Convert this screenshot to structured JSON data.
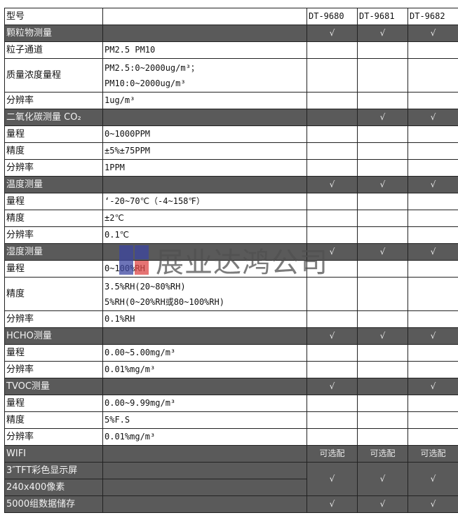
{
  "header": {
    "label": "型号",
    "models": [
      "DT-9680",
      "DT-9681",
      "DT-9682"
    ]
  },
  "check_mark": "√",
  "rows": [
    {
      "type": "section",
      "label": "颗粒物测量",
      "marks": [
        "√",
        "√",
        "√"
      ]
    },
    {
      "type": "item",
      "label": "粒子通道",
      "value": [
        "PM2.5 PM10"
      ]
    },
    {
      "type": "item",
      "label": "质量浓度量程",
      "value": [
        "PM2.5:0~2000ug/m³；",
        "PM10:0~2000ug/m³"
      ]
    },
    {
      "type": "item",
      "label": "分辨率",
      "value": [
        "1ug/m³"
      ]
    },
    {
      "type": "section",
      "label": "二氧化碳测量 CO₂",
      "marks": [
        "",
        "√",
        "√"
      ]
    },
    {
      "type": "item",
      "label": "量程",
      "value": [
        "0~1000PPM"
      ]
    },
    {
      "type": "item",
      "label": "精度",
      "value": [
        "±5%±75PPM"
      ]
    },
    {
      "type": "item",
      "label": "分辨率",
      "value": [
        "1PPM"
      ]
    },
    {
      "type": "section",
      "label": "温度测量",
      "marks": [
        "√",
        "√",
        "√"
      ]
    },
    {
      "type": "item",
      "label": "量程",
      "value": [
        "‘-20~70℃（-4~158℉）"
      ]
    },
    {
      "type": "item",
      "label": "精度",
      "value": [
        "±2℃"
      ]
    },
    {
      "type": "item",
      "label": "分辨率",
      "value": [
        "0.1℃"
      ]
    },
    {
      "type": "section",
      "label": "湿度测量",
      "marks": [
        "√",
        "√",
        "√"
      ]
    },
    {
      "type": "item",
      "label": "量程",
      "value": [
        "0~100%RH"
      ]
    },
    {
      "type": "item",
      "label": "精度",
      "value": [
        "3.5%RH(20~80%RH)",
        "5%RH(0~20%RH或80~100%RH)"
      ]
    },
    {
      "type": "item",
      "label": "分辨率",
      "value": [
        "0.1%RH"
      ]
    },
    {
      "type": "section",
      "label": "HCHO测量",
      "marks": [
        "√",
        "√",
        "√"
      ]
    },
    {
      "type": "item",
      "label": "量程",
      "value": [
        "0.00~5.00mg/m³"
      ]
    },
    {
      "type": "item",
      "label": "分辨率",
      "value": [
        "0.01%mg/m³"
      ]
    },
    {
      "type": "section",
      "label": "TVOC测量",
      "marks": [
        "√",
        "",
        "√"
      ]
    },
    {
      "type": "item",
      "label": "量程",
      "value": [
        "0.00~9.99mg/m³"
      ]
    },
    {
      "type": "item",
      "label": "精度",
      "value": [
        "5%F.S"
      ]
    },
    {
      "type": "item",
      "label": "分辨率",
      "value": [
        "0.01%mg/m³"
      ]
    },
    {
      "type": "section",
      "label": "WIFI",
      "marks": [
        "可选配",
        "可选配",
        "可选配"
      ]
    },
    {
      "type": "display",
      "label": [
        "3″TFT彩色显示屏",
        "240x400像素"
      ],
      "marks": [
        "√",
        "√",
        "√"
      ]
    },
    {
      "type": "section",
      "label": "5000组数据储存",
      "marks": [
        "√",
        "√",
        "√"
      ]
    }
  ],
  "watermark": {
    "text": "展业达鸿公司",
    "colors": [
      "#3c46a0",
      "#dc4646"
    ]
  },
  "colors": {
    "section_bg": "#5a5a5a",
    "border": "#222222"
  }
}
